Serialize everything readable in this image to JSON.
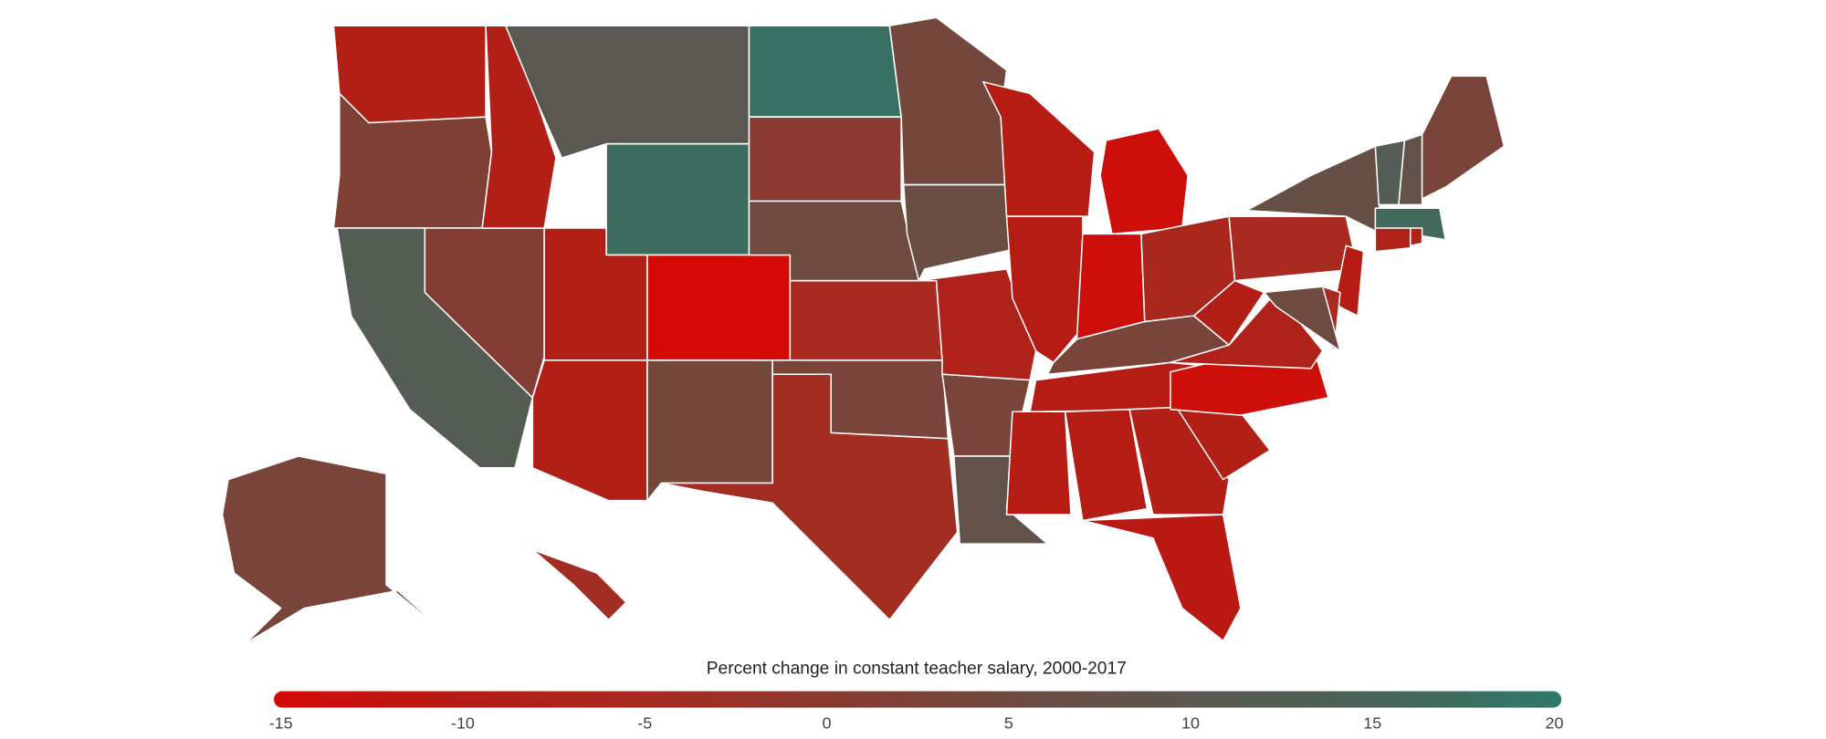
{
  "chart_data": {
    "type": "choropleth",
    "values": [
      -9,
      2,
      12,
      1,
      -9,
      10,
      17,
      -9,
      -9,
      -15,
      4,
      18,
      0,
      5,
      -5,
      3,
      -4,
      4,
      6,
      -8,
      3,
      8,
      -10,
      -10,
      -14,
      -14,
      -6,
      3,
      -10,
      -10,
      -10,
      -9,
      -11,
      -9,
      -14,
      -8,
      -9,
      -5,
      7,
      12,
      8,
      3,
      16,
      -8,
      -8,
      -10,
      -5,
      5,
      3,
      -4
    ],
    "legend": {
      "title": "Percent change in constant teacher salary, 2000-2017",
      "ticks": [
        -15,
        -10,
        -5,
        0,
        5,
        10,
        15,
        20
      ],
      "colors": [
        "#d40a08",
        "#b41c14",
        "#a82a20",
        "#8a3a30",
        "#6e4a40",
        "#5a5850",
        "#486458",
        "#2e7a6a"
      ]
    }
  }
}
